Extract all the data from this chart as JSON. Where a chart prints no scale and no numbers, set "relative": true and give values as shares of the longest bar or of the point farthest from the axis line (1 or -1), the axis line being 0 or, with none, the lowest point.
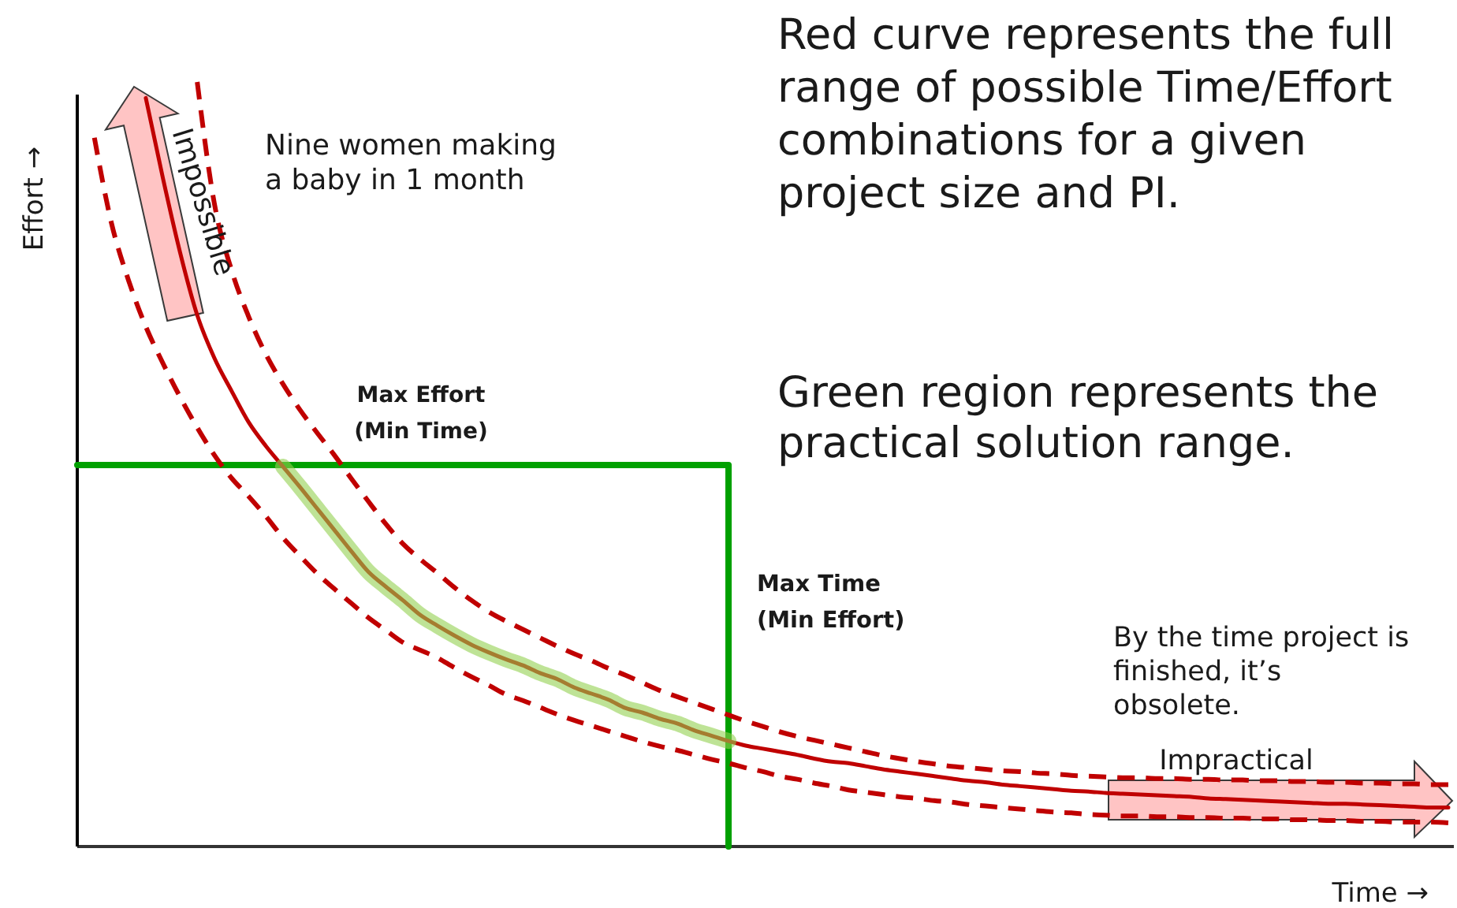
{
  "chart_data": {
    "type": "line",
    "relative": true,
    "xlabel": "Time →",
    "ylabel": "Effort →",
    "categories": [
      null,
      null,
      null,
      null,
      null,
      null,
      null,
      null,
      null,
      null,
      null,
      null,
      null,
      null,
      null,
      null,
      null,
      null,
      null,
      null,
      null,
      null,
      null,
      null,
      null,
      null,
      null,
      null,
      null,
      null,
      null,
      null,
      null,
      null,
      null,
      null,
      null,
      null,
      null,
      null,
      null,
      null,
      null,
      null,
      null,
      null,
      null,
      null,
      null,
      null,
      null,
      null,
      null,
      null,
      null,
      null,
      null,
      null,
      null,
      null,
      null,
      null,
      null,
      null,
      null,
      null,
      null,
      null,
      null,
      null,
      null,
      null,
      null,
      null,
      null,
      null,
      null,
      null,
      null,
      null,
      null
    ],
    "series": [
      {
        "type": "step",
        "color": "#00a000",
        "values": [
          0.499,
          0.499,
          0.499,
          0.499,
          0.499,
          0.499,
          0.499,
          0.499,
          0.499,
          0.499,
          0.499,
          0.499,
          0.499,
          0.499,
          0.499,
          0.499,
          0.499,
          0.499,
          0.499,
          0.499,
          0.499,
          0.499,
          0.499,
          0.499,
          0.499,
          0.499,
          0.499,
          0.499,
          0.499,
          0.499,
          0.499,
          0.499,
          0.499,
          0.499,
          0.499,
          0.499,
          0.499,
          0.499,
          0,
          null,
          null,
          null,
          null,
          null,
          null,
          null,
          null,
          null,
          null,
          null,
          null,
          null,
          null,
          null,
          null,
          null,
          null,
          null,
          null,
          null,
          null,
          null,
          null,
          null,
          null,
          null,
          null,
          null,
          null,
          null,
          null,
          null,
          null,
          null,
          null,
          null,
          null,
          null,
          null,
          null,
          null
        ]
      },
      {
        "color": "#c00000",
        "line_style": "dashed",
        "values": [
          null,
          null,
          null,
          null,
          null,
          null,
          null,
          1,
          0.841,
          0.754,
          0.693,
          0.644,
          0.605,
          0.571,
          0.541,
          0.512,
          0.481,
          0.451,
          0.422,
          0.396,
          0.376,
          0.358,
          0.339,
          0.322,
          0.307,
          0.295,
          0.284,
          0.273,
          0.262,
          0.252,
          0.243,
          0.233,
          0.224,
          0.214,
          0.204,
          0.196,
          0.188,
          0.18,
          0.172,
          0.164,
          0.157,
          0.15,
          0.144,
          0.139,
          0.134,
          0.129,
          0.124,
          0.119,
          0.115,
          0.111,
          0.108,
          0.105,
          0.103,
          0.101,
          0.099,
          0.098,
          0.096,
          0.095,
          0.093,
          0.092,
          0.091,
          0.09,
          0.09,
          0.089,
          0.089,
          0.088,
          0.088,
          0.087,
          0.087,
          0.086,
          0.086,
          0.085,
          0.085,
          0.084,
          0.084,
          0.083,
          0.083,
          0.082,
          0.082,
          0.081,
          0.081
        ]
      },
      {
        "color": "#c00000",
        "line_style": "dashed",
        "values": [
          null,
          0.927,
          0.815,
          0.74,
          0.68,
          0.632,
          0.588,
          0.548,
          0.512,
          0.482,
          0.458,
          0.432,
          0.404,
          0.38,
          0.357,
          0.337,
          0.318,
          0.299,
          0.283,
          0.267,
          0.257,
          0.247,
          0.234,
          0.222,
          0.211,
          0.199,
          0.191,
          0.182,
          0.173,
          0.165,
          0.158,
          0.151,
          0.144,
          0.137,
          0.131,
          0.126,
          0.12,
          0.114,
          0.109,
          0.103,
          0.098,
          0.092,
          0.088,
          0.083,
          0.079,
          0.074,
          0.071,
          0.068,
          0.065,
          0.063,
          0.06,
          0.058,
          0.055,
          0.053,
          0.051,
          0.049,
          0.047,
          0.045,
          0.044,
          0.042,
          0.041,
          0.04,
          0.04,
          0.039,
          0.039,
          0.038,
          0.038,
          0.037,
          0.037,
          0.036,
          0.036,
          0.035,
          0.035,
          0.034,
          0.034,
          0.033,
          0.033,
          0.032,
          0.032,
          0.032,
          0.031
        ]
      },
      {
        "color": "#c00000",
        "values": [
          null,
          null,
          null,
          null,
          0.979,
          0.874,
          0.777,
          0.695,
          0.639,
          0.596,
          0.555,
          0.524,
          0.497,
          0.47,
          0.442,
          0.414,
          0.386,
          0.359,
          0.34,
          0.322,
          0.303,
          0.289,
          0.276,
          0.264,
          0.254,
          0.245,
          0.237,
          0.227,
          0.219,
          0.208,
          0.2,
          0.192,
          0.181,
          0.175,
          0.167,
          0.161,
          0.152,
          0.145,
          0.138,
          0.132,
          0.128,
          0.124,
          0.12,
          0.115,
          0.111,
          0.109,
          0.105,
          0.101,
          0.098,
          0.095,
          0.092,
          0.089,
          0.086,
          0.084,
          0.081,
          0.079,
          0.077,
          0.075,
          0.073,
          0.072,
          0.07,
          0.069,
          0.068,
          0.067,
          0.066,
          0.065,
          0.063,
          0.062,
          0.061,
          0.06,
          0.059,
          0.058,
          0.057,
          0.056,
          0.056,
          0.055,
          0.054,
          0.053,
          0.052,
          0.051,
          0.051
        ]
      },
      {
        "color": "#92d050",
        "values": [
          null,
          null,
          null,
          null,
          null,
          null,
          null,
          null,
          null,
          null,
          null,
          null,
          0.497,
          0.47,
          0.442,
          0.414,
          0.386,
          0.359,
          0.34,
          0.322,
          0.303,
          0.289,
          0.276,
          0.264,
          0.254,
          0.245,
          0.237,
          0.227,
          0.219,
          0.208,
          0.2,
          0.192,
          0.181,
          0.175,
          0.167,
          0.161,
          0.152,
          0.145,
          0.138,
          null,
          null,
          null,
          null,
          null,
          null,
          null,
          null,
          null,
          null,
          null,
          null,
          null,
          null,
          null,
          null,
          null,
          null,
          null,
          null,
          null,
          null,
          null,
          null,
          null,
          null,
          null,
          null,
          null,
          null,
          null,
          null,
          null,
          null,
          null,
          null,
          null,
          null,
          null,
          null,
          null,
          null
        ]
      }
    ],
    "annotations": [
      "Red curve represents the full\nrange of possible Time/Effort\ncombinations for a given\nproject size and PI.",
      "Green region represents the\npractical solution range.",
      "Nine women making\na baby in 1 month",
      "Impossible",
      "Max Effort\n(Min Time)",
      "Max Time\n(Min Effort)",
      "By the time project is\nfinished, it’s\nobsolete.",
      "Impractical"
    ]
  }
}
